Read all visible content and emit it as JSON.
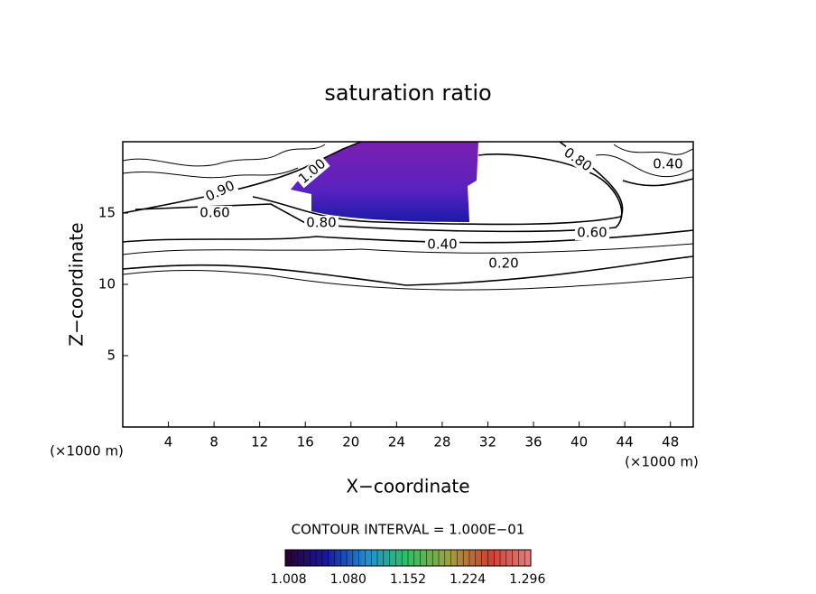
{
  "chart_data": {
    "type": "contour",
    "title": "saturation ratio",
    "xlabel": "X−coordinate",
    "ylabel": "Z−coordinate",
    "xunit": "(×1000 m)",
    "yunit": "(×1000 m)",
    "xlim": [
      0,
      50
    ],
    "ylim": [
      0,
      20
    ],
    "xticks": [
      4,
      8,
      12,
      16,
      20,
      24,
      28,
      32,
      36,
      40,
      44,
      48
    ],
    "yticks": [
      5,
      10,
      15
    ],
    "contour_labels": [
      {
        "value": 0.8,
        "label": "0.80"
      },
      {
        "value": 0.4,
        "label": "0.40"
      },
      {
        "value": 0.9,
        "label": "0.90"
      },
      {
        "value": 0.6,
        "label": "0.60"
      },
      {
        "value": 1.0,
        "label": "1.00"
      },
      {
        "value": 0.8,
        "label": "0.80"
      },
      {
        "value": 0.4,
        "label": "0.40"
      },
      {
        "value": 0.6,
        "label": "0.60"
      },
      {
        "value": 0.2,
        "label": "0.20"
      }
    ],
    "contour_interval": "CONTOUR INTERVAL = 1.000E−01",
    "colorbar": {
      "clim": [
        1.004,
        1.3
      ],
      "ticks": [
        {
          "value": 1.008,
          "label": "1.008"
        },
        {
          "value": 1.08,
          "label": "1.080"
        },
        {
          "value": 1.152,
          "label": "1.152"
        },
        {
          "value": 1.224,
          "label": "1.224"
        },
        {
          "value": 1.296,
          "label": "1.296"
        }
      ],
      "colormap": [
        "#2a0030",
        "#1818a0",
        "#2090d0",
        "#30c060",
        "#a0a040",
        "#d04030",
        "#e08080"
      ]
    }
  }
}
